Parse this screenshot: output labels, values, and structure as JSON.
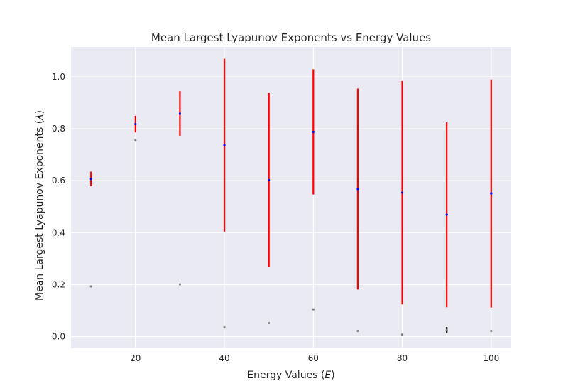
{
  "chart_data": {
    "type": "scatter",
    "title": "Mean Largest Lyapunov Exponents vs Energy Values",
    "xlabel": "Energy Values (",
    "xlabel_symbol": "E",
    "xlabel_close": ")",
    "ylabel": "Mean Largest Lyapunov Exponents (",
    "ylabel_symbol": "λ",
    "ylabel_close": ")",
    "xlim": [
      5.5,
      104.5
    ],
    "ylim": [
      -0.045,
      1.115
    ],
    "xticks": [
      20,
      40,
      60,
      80,
      100
    ],
    "xtick_labels": [
      "20",
      "40",
      "60",
      "80",
      "100"
    ],
    "yticks": [
      0.0,
      0.2,
      0.4,
      0.6,
      0.8,
      1.0
    ],
    "ytick_labels": [
      "0.0",
      "0.2",
      "0.4",
      "0.6",
      "0.8",
      "1.0"
    ],
    "grid": true,
    "background": "#eaeaf2",
    "series": [
      {
        "marker_color": "#0000ff",
        "error_color": "#ff0000",
        "x": [
          10,
          20,
          30,
          40,
          50,
          60,
          70,
          80,
          90,
          100
        ],
        "y": [
          0.607,
          0.818,
          0.858,
          0.737,
          0.602,
          0.788,
          0.568,
          0.554,
          0.469,
          0.551
        ],
        "yerr": [
          0.028,
          0.032,
          0.087,
          0.333,
          0.335,
          0.241,
          0.387,
          0.43,
          0.356,
          0.439
        ]
      },
      {
        "marker_color": "#808080",
        "error_color": "#000000",
        "x": [
          10,
          20,
          30,
          40,
          50,
          60,
          70,
          80,
          90,
          100
        ],
        "y": [
          0.193,
          0.755,
          0.201,
          0.035,
          0.052,
          0.105,
          0.022,
          0.008,
          0.025,
          0.022
        ],
        "yerr": [
          0,
          0,
          0,
          0,
          0,
          0,
          0,
          0,
          0.012,
          0
        ]
      }
    ]
  }
}
